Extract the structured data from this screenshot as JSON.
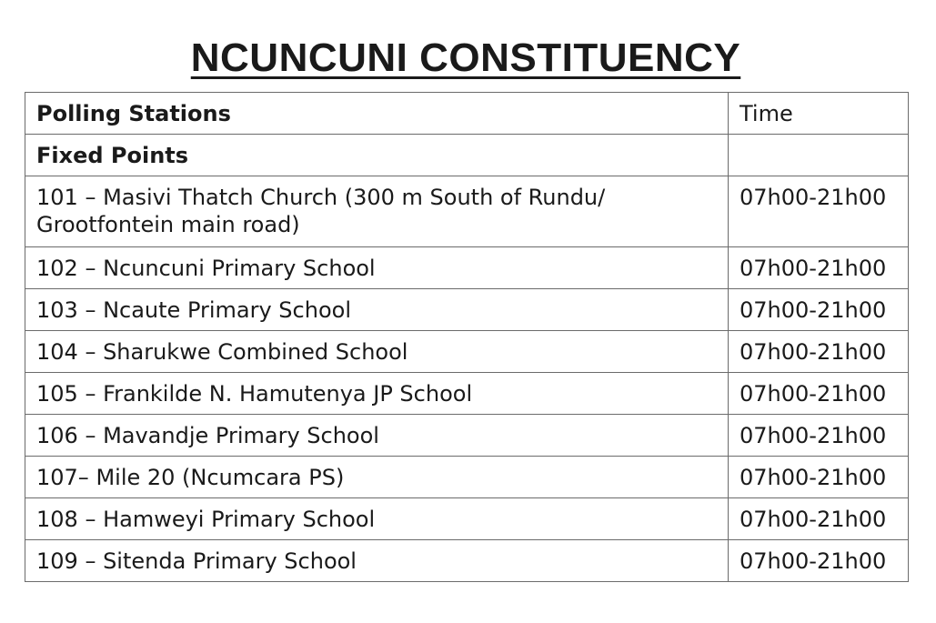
{
  "title": "NCUNCUNI CONSTITUENCY",
  "table": {
    "header": {
      "station": "Polling Stations",
      "time": "Time"
    },
    "section": {
      "label": "Fixed Points",
      "time": ""
    },
    "rows": [
      {
        "station": "101 – Masivi Thatch Church (300 m South of Rundu/ Grootfontein main road)",
        "time": "07h00-21h00"
      },
      {
        "station": "102 – Ncuncuni Primary School",
        "time": "07h00-21h00"
      },
      {
        "station": "103 – Ncaute Primary School",
        "time": "07h00-21h00"
      },
      {
        "station": "104 – Sharukwe Combined School",
        "time": "07h00-21h00"
      },
      {
        "station": "105 – Frankilde N. Hamutenya JP School",
        "time": "07h00-21h00"
      },
      {
        "station": "106 – Mavandje Primary School",
        "time": "07h00-21h00"
      },
      {
        "station": "107– Mile 20 (Ncumcara PS)",
        "time": "07h00-21h00"
      },
      {
        "station": "108 – Hamweyi Primary School",
        "time": "07h00-21h00"
      },
      {
        "station": "109 – Sitenda Primary School",
        "time": "07h00-21h00"
      }
    ]
  }
}
